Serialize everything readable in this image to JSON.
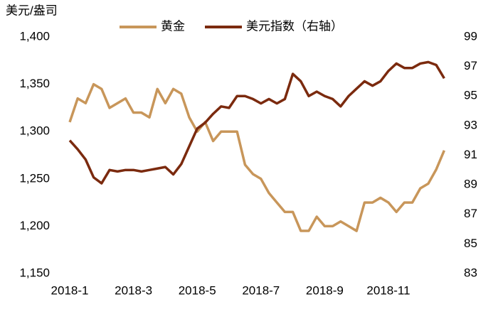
{
  "chart_data": {
    "type": "line",
    "y_axis_label": "美元/盎司",
    "categories": [
      "2018-1",
      null,
      null,
      null,
      null,
      null,
      null,
      null,
      "2018-3",
      null,
      null,
      null,
      null,
      null,
      null,
      null,
      "2018-5",
      null,
      null,
      null,
      null,
      null,
      null,
      null,
      "2018-7",
      null,
      null,
      null,
      null,
      null,
      null,
      null,
      "2018-9",
      null,
      null,
      null,
      null,
      null,
      null,
      null,
      "2018-11",
      null,
      null,
      null,
      null,
      null,
      null,
      null
    ],
    "series": [
      {
        "name": "黄金",
        "color": "#c8965a",
        "values": [
          1310,
          1335,
          1330,
          1350,
          1345,
          1325,
          1330,
          1335,
          1320,
          1320,
          1315,
          1345,
          1330,
          1345,
          1340,
          1315,
          1300,
          1310,
          1290,
          1300,
          1300,
          1300,
          1265,
          1255,
          1250,
          1235,
          1225,
          1215,
          1215,
          1195,
          1195,
          1210,
          1200,
          1200,
          1205,
          1200,
          1195,
          1225,
          1225,
          1230,
          1225,
          1215,
          1225,
          1225,
          1240,
          1245,
          1260,
          1280
        ]
      },
      {
        "name": "美元指数（右轴）",
        "color": "#7b2a0e",
        "axis": "y2",
        "values": [
          92.0,
          91.4,
          90.7,
          89.5,
          89.1,
          90.0,
          89.9,
          90.0,
          90.0,
          89.9,
          90.0,
          90.1,
          90.2,
          89.7,
          90.4,
          91.6,
          92.8,
          93.2,
          93.8,
          94.3,
          94.2,
          95.0,
          95.0,
          94.8,
          94.5,
          94.8,
          94.5,
          94.8,
          96.5,
          96.0,
          95.0,
          95.3,
          95.0,
          94.8,
          94.3,
          95.0,
          95.5,
          96.0,
          95.7,
          96.0,
          96.7,
          97.2,
          96.9,
          96.9,
          97.2,
          97.3,
          97.1,
          96.2
        ]
      }
    ],
    "ylim": [
      1150,
      1400
    ],
    "yticks": [
      {
        "value": 1150,
        "label": "1,150"
      },
      {
        "value": 1200,
        "label": "1,200"
      },
      {
        "value": 1250,
        "label": "1,250"
      },
      {
        "value": 1300,
        "label": "1,300"
      },
      {
        "value": 1350,
        "label": "1,350"
      },
      {
        "value": 1400,
        "label": "1,400"
      }
    ],
    "y2lim": [
      83,
      99
    ],
    "y2ticks": [
      83,
      85,
      87,
      89,
      91,
      93,
      95,
      97,
      99
    ],
    "grid": false
  }
}
